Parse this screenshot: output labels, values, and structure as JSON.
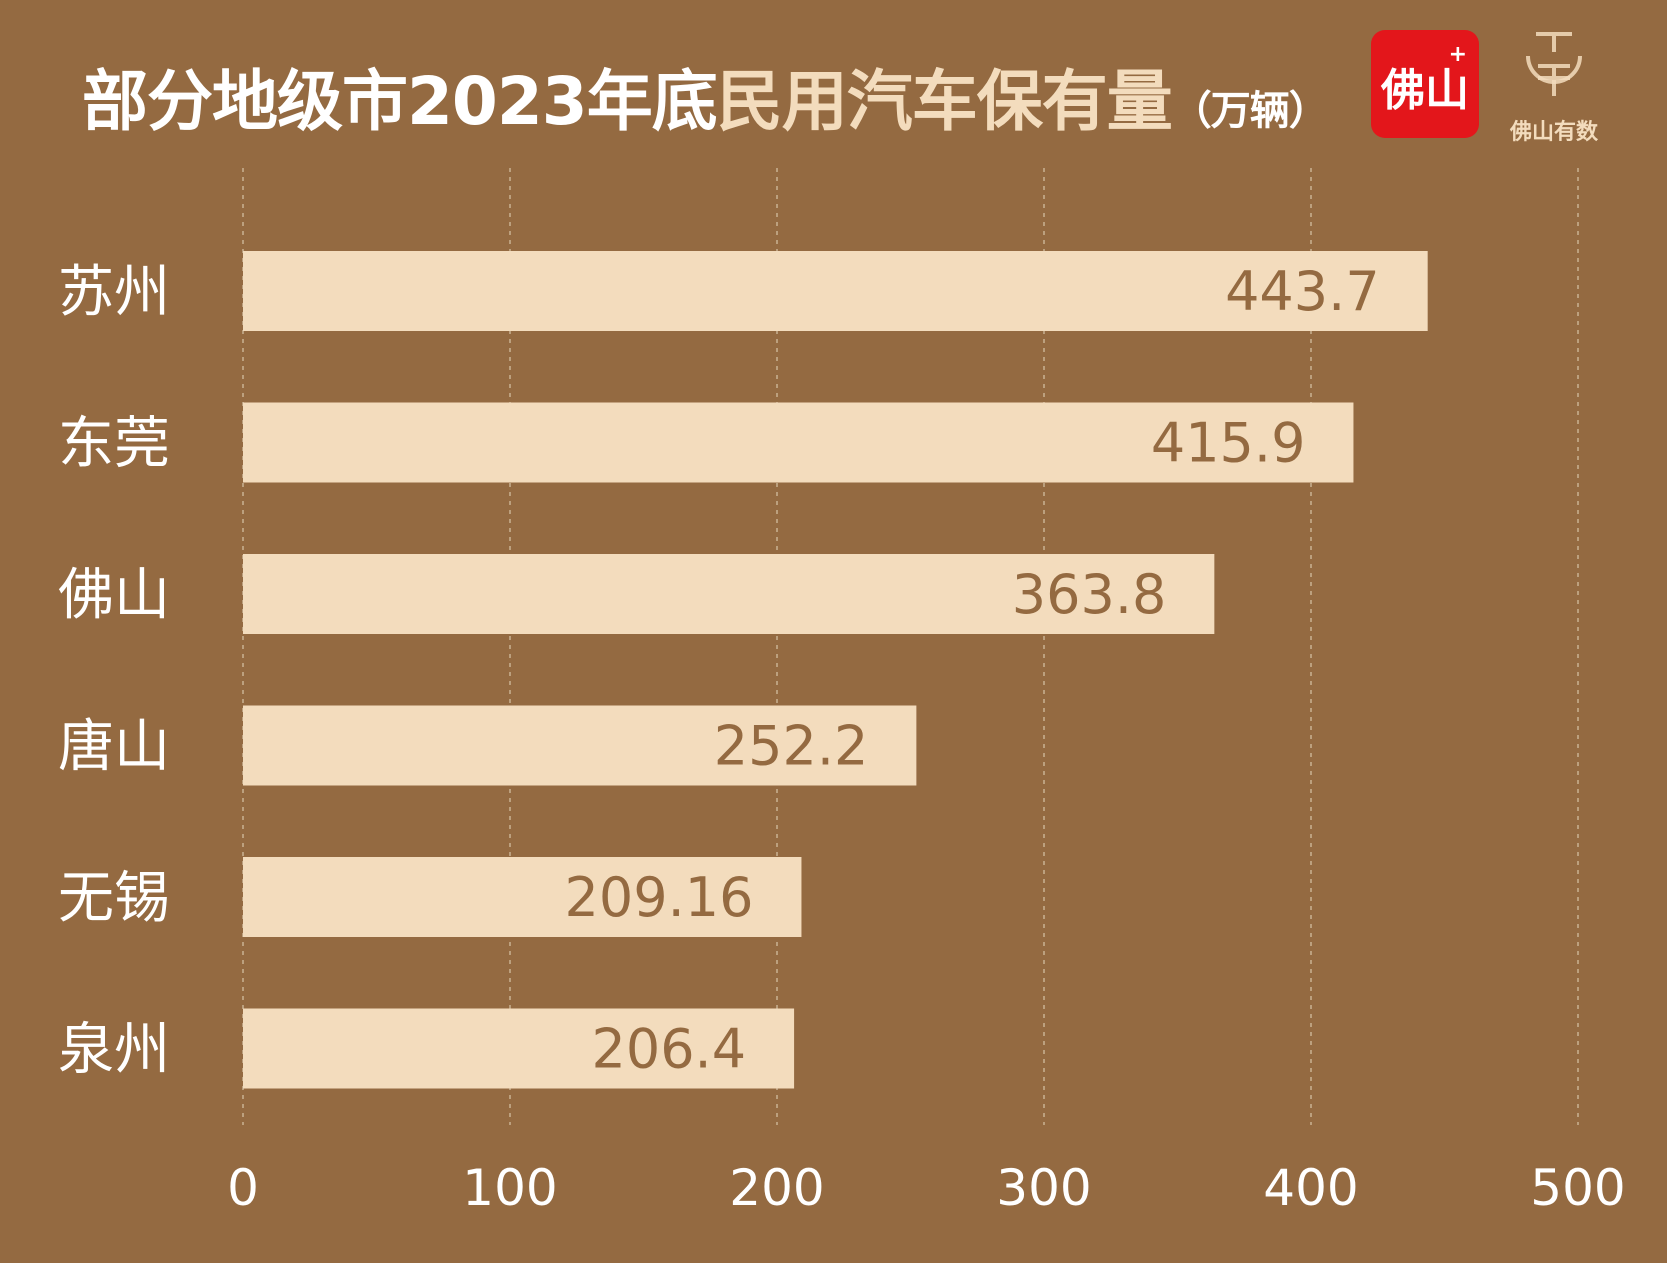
{
  "title": {
    "part1": "部分地级市2023年底",
    "part2": "民用汽车保有量",
    "unit": "（万辆）"
  },
  "logos": {
    "red_badge_text": "佛山",
    "red_badge_plus": "+",
    "brand_text": "佛山有数"
  },
  "colors": {
    "background": "#946a41",
    "bar": "#f3dcbd",
    "accent_title": "#f3dcbd",
    "logo_red": "#e3161b"
  },
  "chart_data": {
    "type": "bar",
    "orientation": "horizontal",
    "categories": [
      "苏州",
      "东莞",
      "佛山",
      "唐山",
      "无锡",
      "泉州"
    ],
    "values": [
      443.7,
      415.9,
      363.8,
      252.2,
      209.16,
      206.4
    ],
    "value_labels": [
      "443.7",
      "415.9",
      "363.8",
      "252.2",
      "209.16",
      "206.4"
    ],
    "xlim": [
      0,
      500
    ],
    "xticks": [
      0,
      100,
      200,
      300,
      400,
      500
    ],
    "grid": "vertical dashed"
  }
}
